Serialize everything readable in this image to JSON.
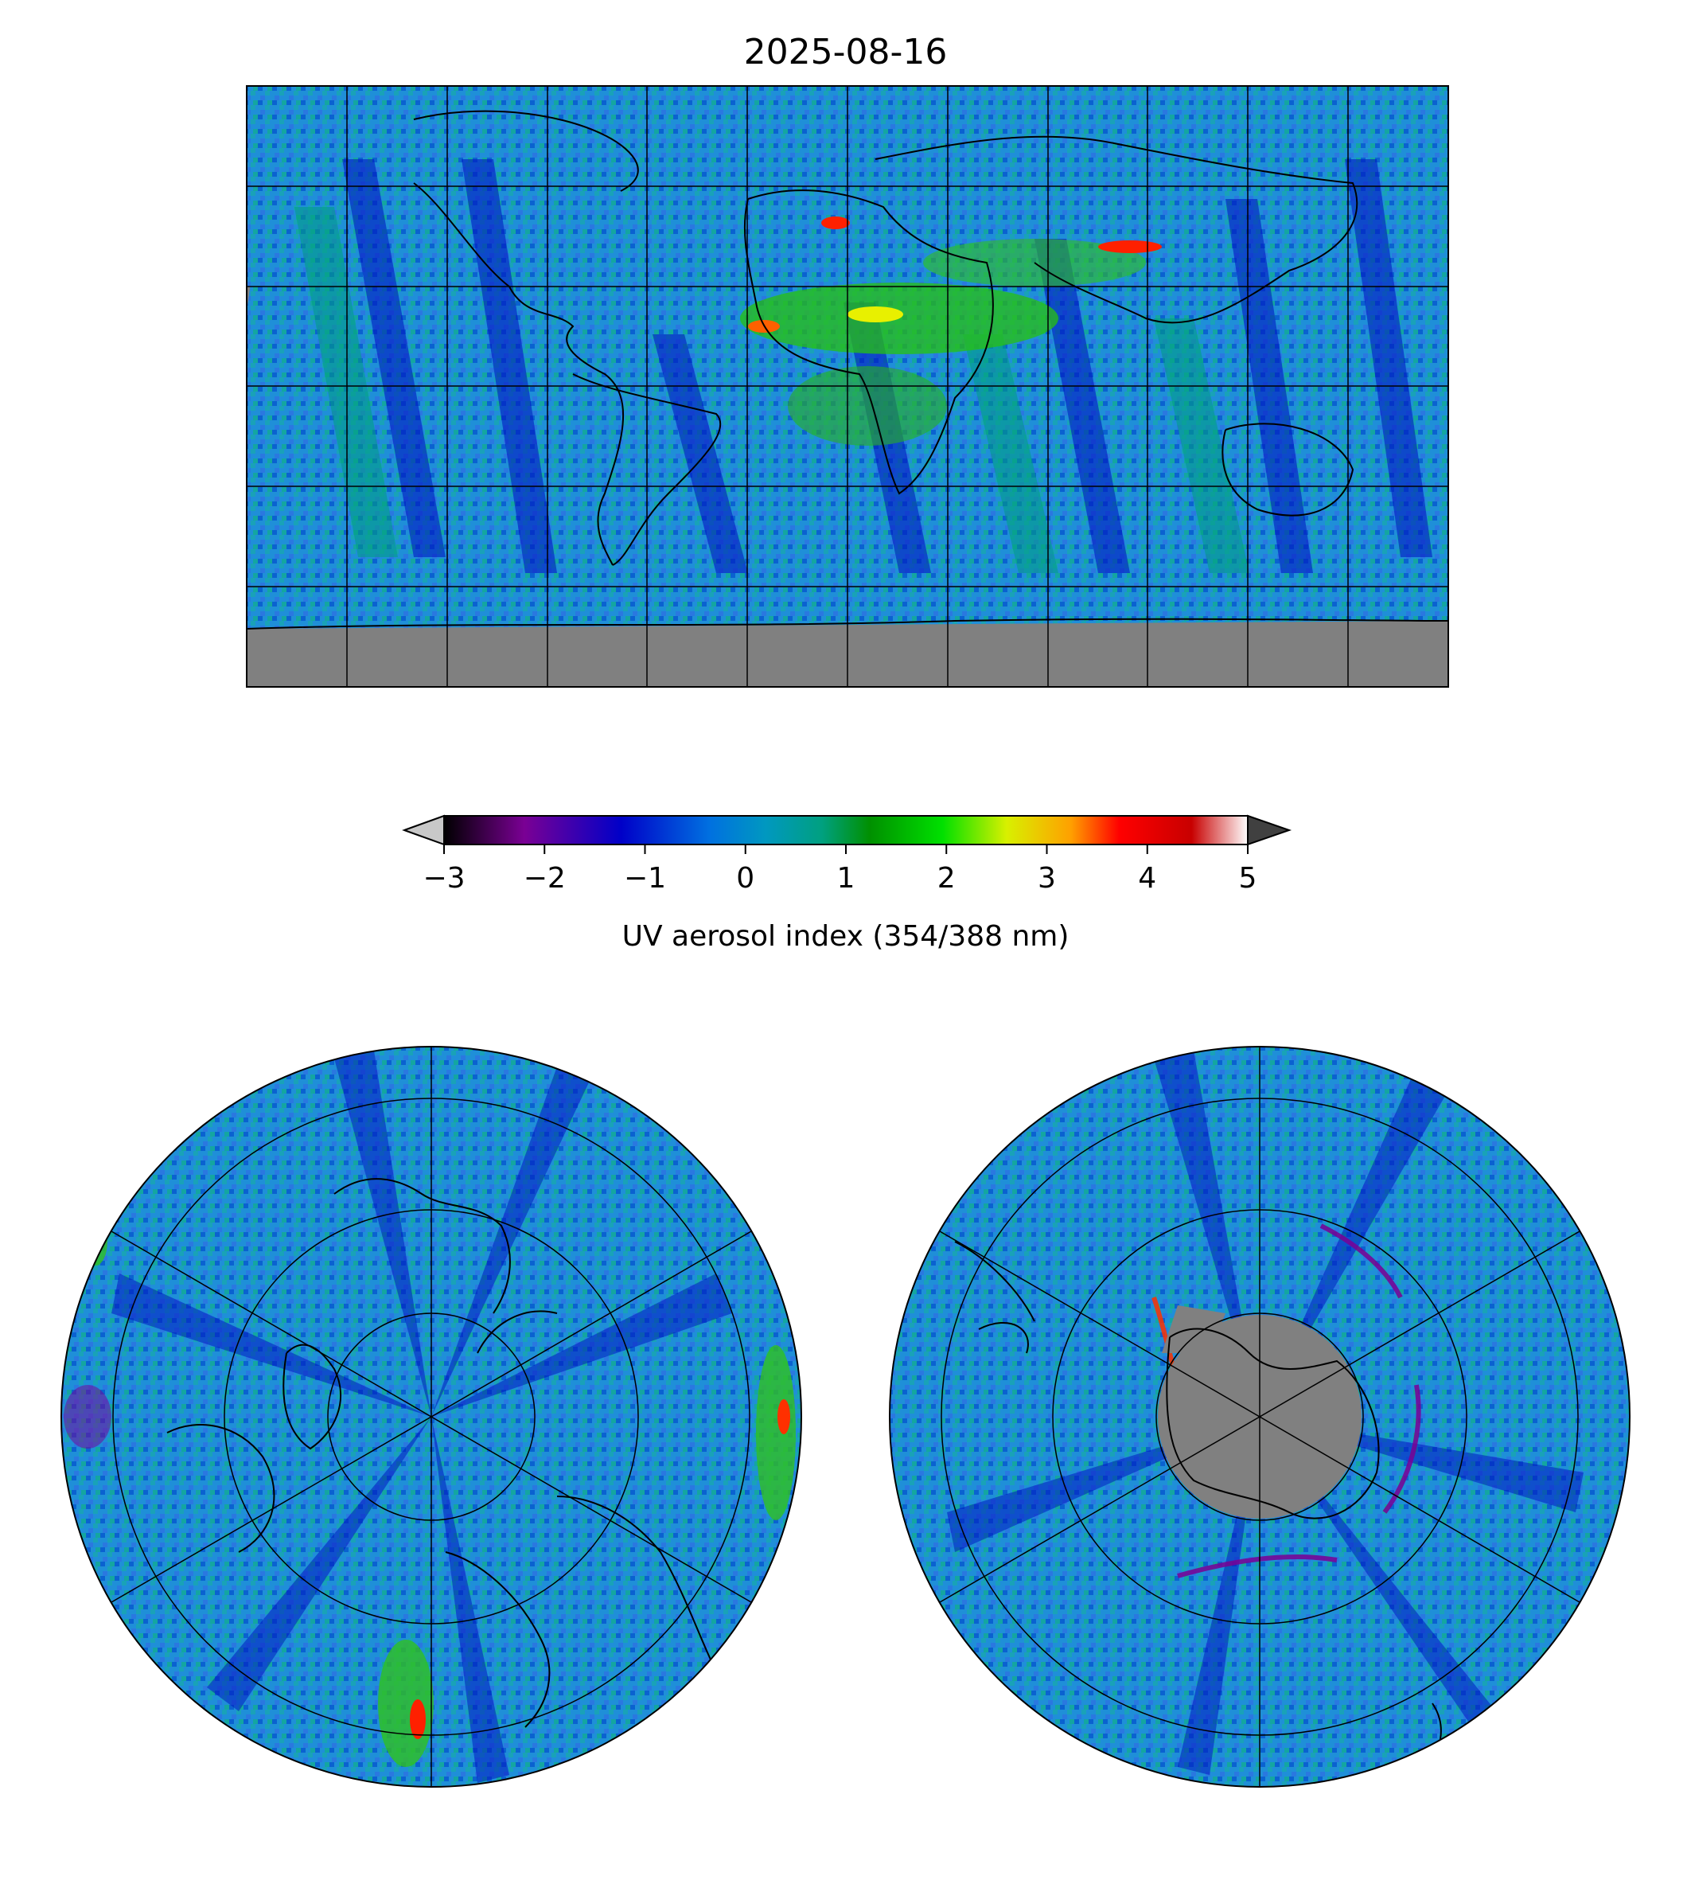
{
  "title": "2025-08-16",
  "colorbar": {
    "label": "UV aerosol index (354/388 nm)",
    "ticks": [
      "−3",
      "−2",
      "−1",
      "0",
      "1",
      "2",
      "3",
      "4",
      "5"
    ],
    "range": [
      -3,
      5
    ],
    "extend": "both",
    "colors": [
      "#000000",
      "#7a0094",
      "#0000c8",
      "#0070e0",
      "#0098c0",
      "#00a080",
      "#009000",
      "#00e000",
      "#d8f000",
      "#ffa000",
      "#ff0000",
      "#c80000",
      "#ffffff"
    ],
    "under_color": "#c8c8c8",
    "over_color": "#404040"
  },
  "maps": [
    {
      "name": "global",
      "projection": "plate-carree",
      "gridlines": true,
      "no_data_color": "#808080"
    },
    {
      "name": "north-polar",
      "projection": "north-polar-stereographic",
      "gridlines": true
    },
    {
      "name": "south-polar",
      "projection": "south-polar-stereographic",
      "gridlines": true,
      "no_data_color": "#808080"
    }
  ]
}
